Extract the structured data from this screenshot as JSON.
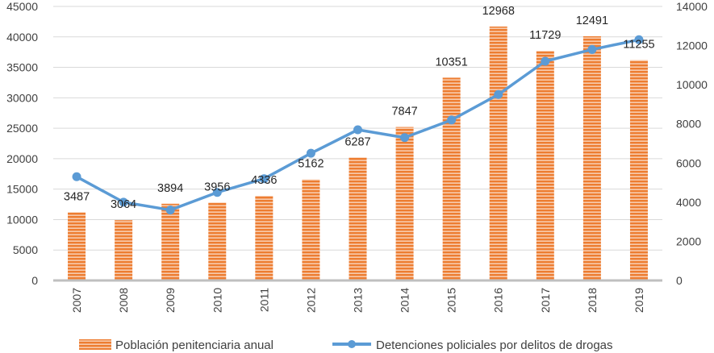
{
  "chart_data": {
    "type": "bar",
    "title": "",
    "xlabel": "",
    "ylabel": "",
    "categories": [
      "2007",
      "2008",
      "2009",
      "2010",
      "2011",
      "2012",
      "2013",
      "2014",
      "2015",
      "2016",
      "2017",
      "2018",
      "2019"
    ],
    "y_left": {
      "range": [
        0,
        45000
      ],
      "ticks": [
        "0",
        "5000",
        "10000",
        "15000",
        "20000",
        "25000",
        "30000",
        "35000",
        "40000",
        "45000"
      ]
    },
    "y_right": {
      "range": [
        0,
        14000
      ],
      "ticks": [
        "0",
        "2000",
        "4000",
        "6000",
        "8000",
        "10000",
        "12000",
        "14000"
      ]
    },
    "grid": true,
    "legend": "bottom",
    "series": [
      {
        "name": "Población penitenciaria anual",
        "type": "bar",
        "axis": "left",
        "color": "#ED7D31",
        "values": [
          11200,
          9900,
          12600,
          12800,
          13900,
          16600,
          20200,
          25200,
          33300,
          41700,
          37700,
          40100,
          36200
        ]
      },
      {
        "name": "Detenciones policiales por delitos de drogas",
        "type": "line",
        "axis": "right",
        "color": "#5B9BD5",
        "values": [
          5300,
          4000,
          3600,
          4500,
          5200,
          6500,
          7700,
          7300,
          8200,
          9500,
          11200,
          11800,
          12300
        ]
      }
    ],
    "data_labels": [
      "3487",
      "3064",
      "3894",
      "3956",
      "4336",
      "5162",
      "6287",
      "7847",
      "10351",
      "12968",
      "11729",
      "12491",
      "11255"
    ]
  }
}
